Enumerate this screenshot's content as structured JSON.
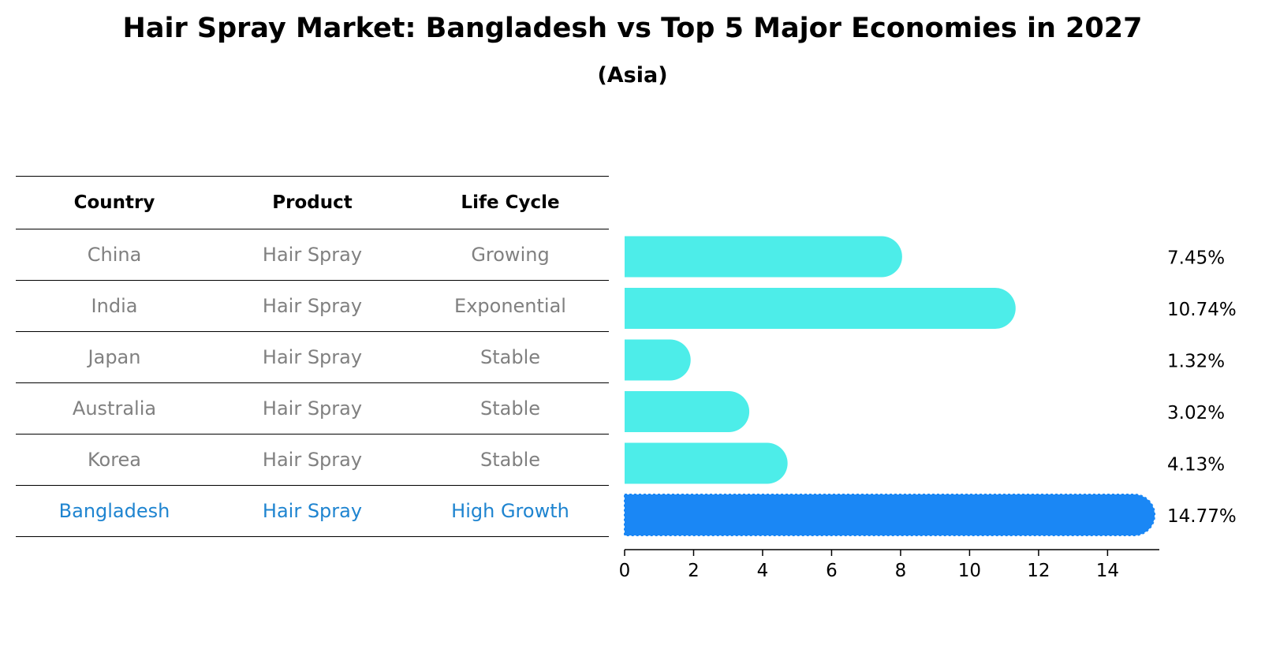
{
  "chart_data": {
    "type": "bar",
    "orientation": "horizontal",
    "title": "Hair Spray Market: Bangladesh vs Top 5 Major Economies in 2027",
    "subtitle": "(Asia)",
    "categories": [
      "China",
      "India",
      "Japan",
      "Australia",
      "Korea",
      "Bangladesh"
    ],
    "values": [
      7.45,
      10.74,
      1.32,
      3.02,
      4.13,
      14.77
    ],
    "value_labels": [
      "7.45%",
      "10.74%",
      "1.32%",
      "3.02%",
      "4.13%",
      "14.77%"
    ],
    "xlim": [
      0,
      15.5
    ],
    "xticks": [
      0,
      2,
      4,
      6,
      8,
      10,
      12,
      14
    ],
    "xlabel": "",
    "ylabel": "",
    "highlight_category": "Bangladesh",
    "colors": {
      "default": "#4dede9",
      "highlight": "#1a87f5"
    }
  },
  "table": {
    "headers": [
      "Country",
      "Product",
      "Life Cycle"
    ],
    "rows": [
      [
        "China",
        "Hair Spray",
        "Growing"
      ],
      [
        "India",
        "Hair Spray",
        "Exponential"
      ],
      [
        "Japan",
        "Hair Spray",
        "Stable"
      ],
      [
        "Australia",
        "Hair Spray",
        "Stable"
      ],
      [
        "Korea",
        "Hair Spray",
        "Stable"
      ],
      [
        "Bangladesh",
        "Hair Spray",
        "High Growth"
      ]
    ],
    "highlight_row": 5,
    "colors": {
      "text": "#808080",
      "highlight_text": "#1e84d0"
    }
  }
}
